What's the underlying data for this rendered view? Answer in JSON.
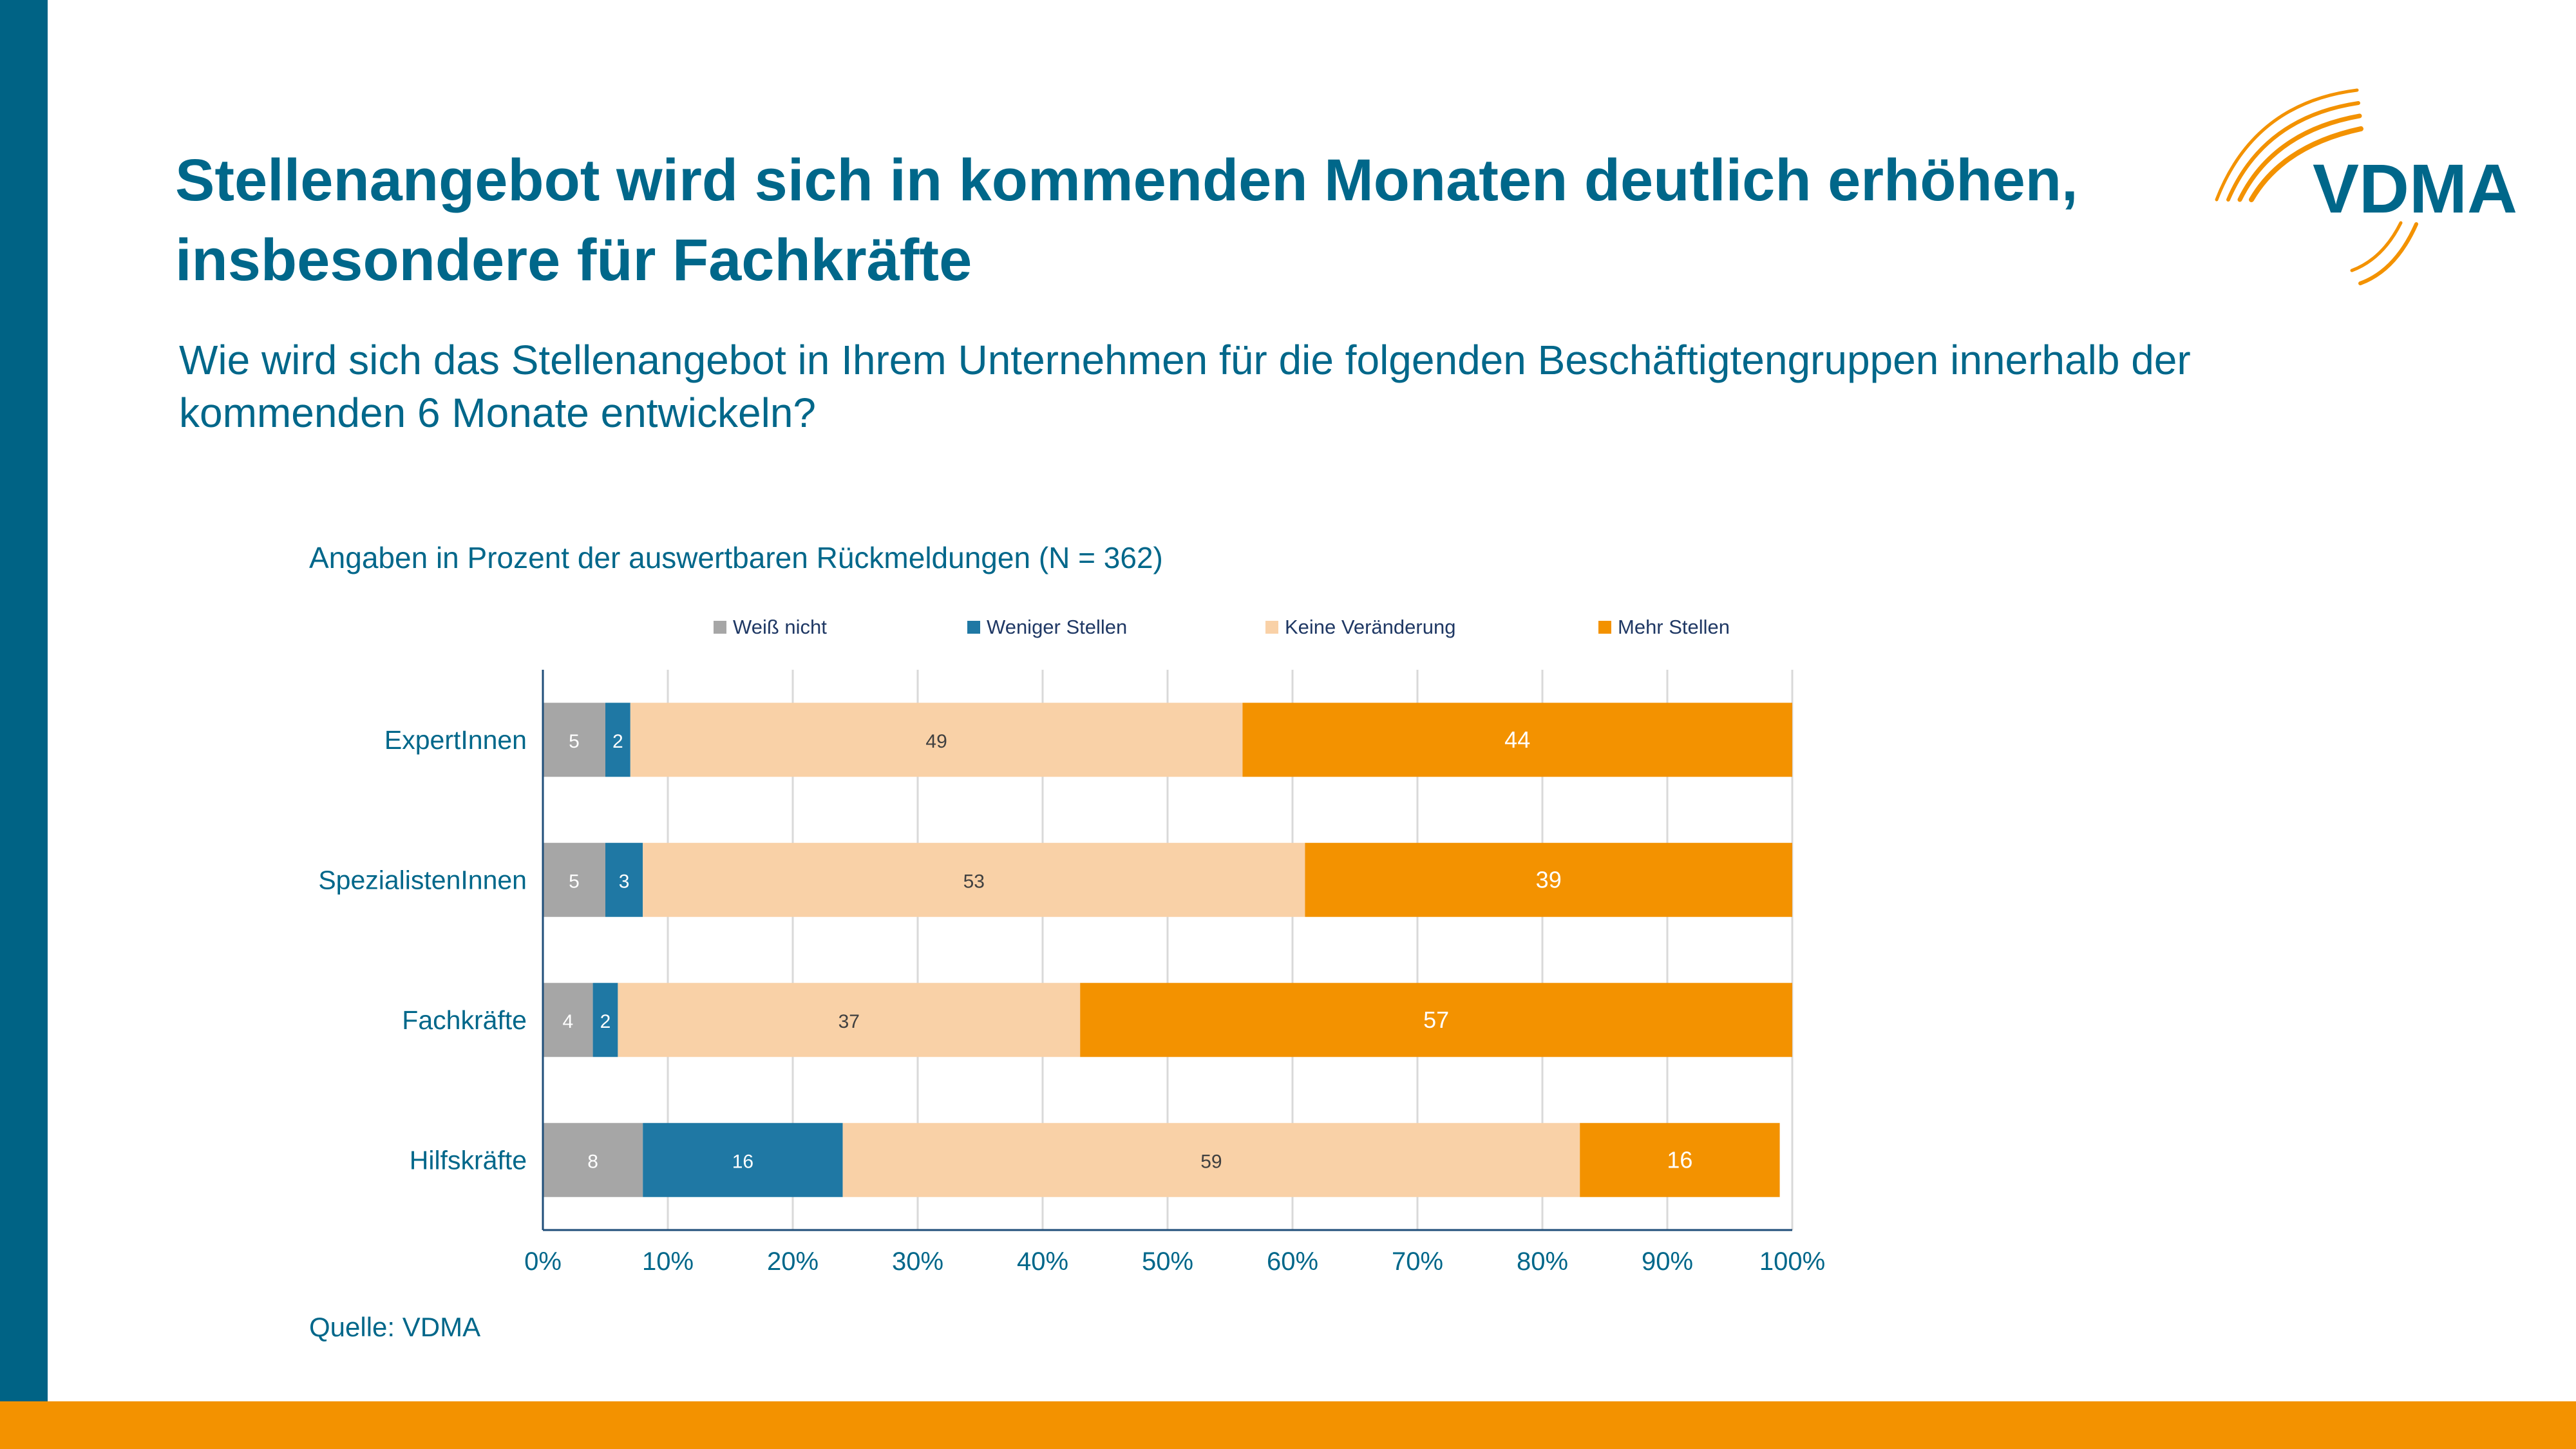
{
  "title": "Stellenangebot wird sich in kommenden Monaten deutlich erhöhen, insbesondere für Fachkräfte",
  "subtitle": "Wie wird sich das Stellenangebot in Ihrem Unternehmen für die folgenden Beschäftigtengruppen innerhalb der kommenden 6 Monate entwickeln?",
  "logo_text": "VDMA",
  "colors": {
    "primary": "#006385",
    "accent": "#f39200",
    "text": "#00678a",
    "series": [
      "#a6a6a6",
      "#1f78a4",
      "#f9d1a7",
      "#f39200"
    ]
  },
  "chart_data": {
    "type": "bar",
    "orientation": "horizontal",
    "stacked": true,
    "note": "Angaben in Prozent der auswertbaren Rückmeldungen (N = 362)",
    "source": "Quelle: VDMA",
    "categories": [
      "ExpertInnen",
      "SpezialistenInnen",
      "Fachkräfte",
      "Hilfskräfte"
    ],
    "series": [
      {
        "name": "Weiß nicht",
        "values": [
          5,
          5,
          4,
          8
        ]
      },
      {
        "name": "Weniger Stellen",
        "values": [
          2,
          3,
          2,
          16
        ]
      },
      {
        "name": "Keine Veränderung",
        "values": [
          49,
          53,
          37,
          59
        ]
      },
      {
        "name": "Mehr Stellen",
        "values": [
          44,
          39,
          57,
          16
        ]
      }
    ],
    "xlim": [
      0,
      100
    ],
    "xticks": [
      "0%",
      "10%",
      "20%",
      "30%",
      "40%",
      "50%",
      "60%",
      "70%",
      "80%",
      "90%",
      "100%"
    ],
    "grid": true,
    "legend_position": "top"
  }
}
